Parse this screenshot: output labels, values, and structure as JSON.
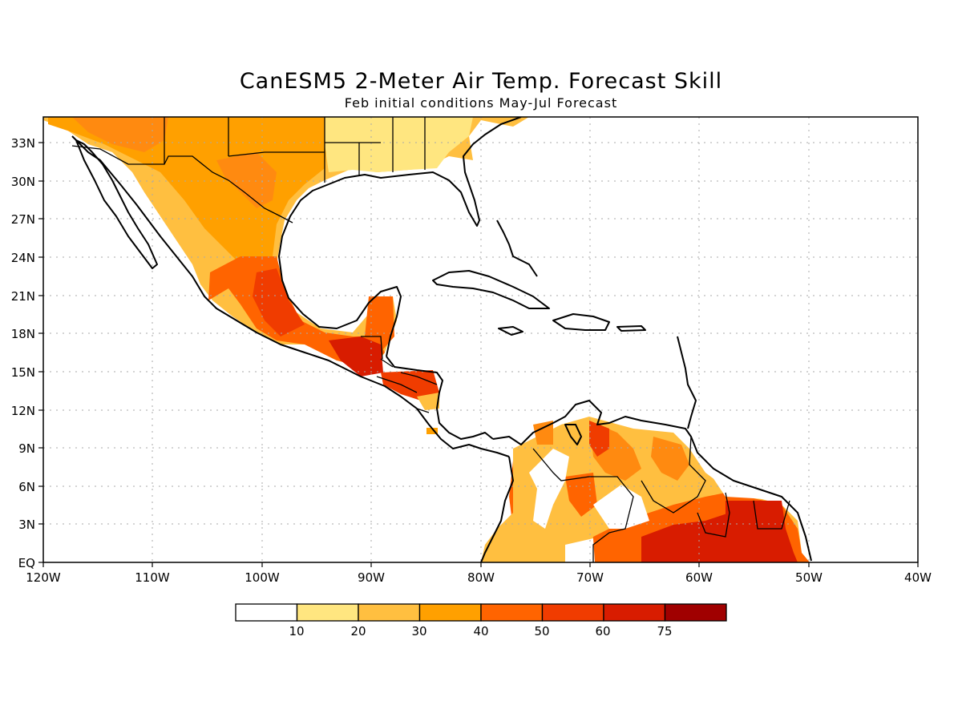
{
  "title": "CanESM5 2-Meter Air Temp. Forecast Skill",
  "subtitle": "Feb initial conditions   May-Jul Forecast",
  "lat_labels": [
    "33N",
    "30N",
    "27N",
    "24N",
    "21N",
    "18N",
    "15N",
    "12N",
    "9N",
    "6N",
    "3N",
    "EQ"
  ],
  "lon_labels": [
    "120W",
    "110W",
    "100W",
    "90W",
    "80W",
    "70W",
    "60W",
    "50W",
    "40W"
  ],
  "colorbar": {
    "labels": [
      "10",
      "20",
      "30",
      "40",
      "50",
      "60",
      "75"
    ],
    "colors": [
      "#ffffff",
      "#ffe680",
      "#ffbf40",
      "#ffa000",
      "#ff6400",
      "#f03c00",
      "#d81c00",
      "#a00000"
    ]
  },
  "map_extent": {
    "lon_min": -120,
    "lon_max": -40,
    "lat_min": 0,
    "lat_max": 35
  }
}
